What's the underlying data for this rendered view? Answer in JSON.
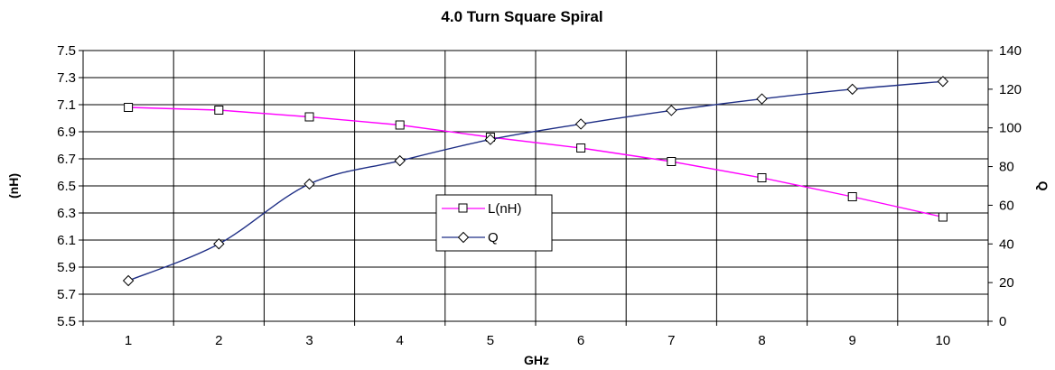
{
  "chart_data": {
    "type": "line",
    "title": "4.0 Turn Square Spiral",
    "xlabel": "GHz",
    "ylabel": "(nH)",
    "y2label": "Q",
    "x": [
      1,
      2,
      3,
      4,
      5,
      6,
      7,
      8,
      9,
      10
    ],
    "xticks": [
      "1",
      "2",
      "3",
      "4",
      "5",
      "6",
      "7",
      "8",
      "9",
      "10"
    ],
    "ylim": [
      5.5,
      7.5
    ],
    "yticks": [
      "5.5",
      "5.7",
      "5.9",
      "6.1",
      "6.3",
      "6.5",
      "6.7",
      "6.9",
      "7.1",
      "7.3",
      "7.5"
    ],
    "y2lim": [
      0,
      140
    ],
    "y2ticks": [
      "0",
      "20",
      "40",
      "60",
      "80",
      "100",
      "120",
      "140"
    ],
    "grid": true,
    "legend_position": "center",
    "series": [
      {
        "name": "L(nH)",
        "axis": "left",
        "color": "#ff00ff",
        "marker": "square",
        "values": [
          7.08,
          7.06,
          7.01,
          6.95,
          6.86,
          6.78,
          6.68,
          6.56,
          6.42,
          6.27
        ]
      },
      {
        "name": "Q",
        "axis": "right",
        "color": "#1f2f86",
        "marker": "diamond",
        "values": [
          21,
          40,
          71,
          83,
          94,
          102,
          109,
          115,
          120,
          124
        ]
      }
    ]
  }
}
